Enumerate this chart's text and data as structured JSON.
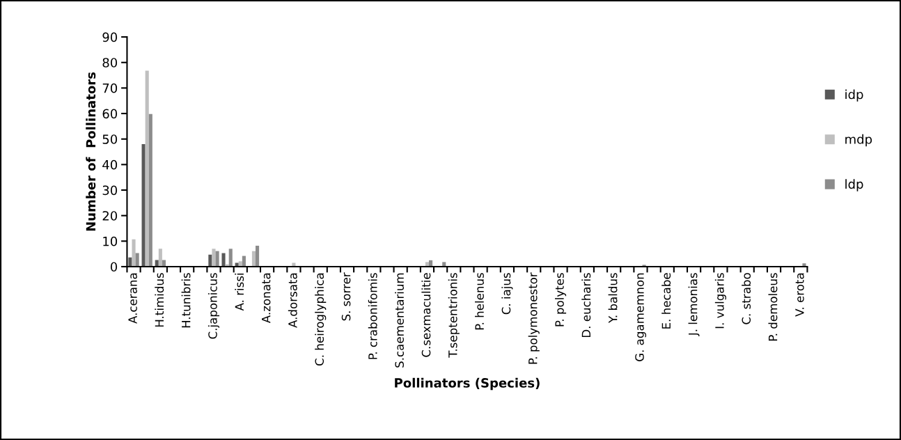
{
  "chart_data": {
    "type": "bar",
    "xlabel": "Pollinators (Species)",
    "ylabel": "Number of  Pollinators",
    "categories": [
      "A.cerana",
      null,
      "H.timidus",
      null,
      "H.tunibris",
      null,
      "C.japonicus",
      null,
      "A. rissi",
      null,
      "A.zonata",
      null,
      "A.dorsata",
      null,
      "C. heiroglyphica",
      null,
      "S. sorrer",
      null,
      "P. crabonifomis",
      null,
      "S.caementarium",
      null,
      "C.sexmaculitie",
      null,
      "T.septentrionis",
      null,
      "P. helenus",
      null,
      "C. iajus",
      null,
      "P. polymonestor",
      null,
      "P. polytes",
      null,
      "D. eucharis",
      null,
      "Y. baldus",
      null,
      "G. agamemnon",
      null,
      "E. hecabe",
      null,
      "J. lemonias",
      null,
      "I. vulgaris",
      null,
      "C. strabo",
      null,
      "P. demoleus",
      null,
      "V. erota"
    ],
    "series": [
      {
        "name": "idp",
        "color": "#595959",
        "values": [
          3.6,
          48,
          2.6,
          0,
          0,
          0,
          4.7,
          5.3,
          1.5,
          0,
          0,
          0,
          0,
          0,
          0,
          0,
          0,
          0,
          0,
          0,
          0,
          0,
          0,
          0,
          0,
          0,
          0,
          0,
          0,
          0,
          0,
          0,
          0,
          0,
          0,
          0,
          0,
          0,
          0,
          0,
          0,
          0,
          0,
          0,
          0,
          0,
          0,
          0,
          0,
          0,
          0
        ]
      },
      {
        "name": "mdp",
        "color": "#bfbfbf",
        "values": [
          10.7,
          76.8,
          7,
          0,
          0,
          0,
          7,
          0.9,
          2.1,
          6.1,
          0,
          0,
          1.5,
          0,
          0,
          0,
          0,
          0,
          0,
          0,
          0,
          0,
          1.8,
          0,
          0,
          0,
          0,
          0,
          0,
          0,
          0,
          0,
          0,
          0,
          0,
          0,
          0,
          0,
          0,
          0,
          0,
          0,
          0,
          0,
          0,
          0,
          0,
          0,
          0,
          0,
          0
        ]
      },
      {
        "name": "ldp",
        "color": "#8c8c8c",
        "values": [
          5.3,
          59.8,
          2.6,
          0,
          0,
          0,
          6.1,
          7,
          4.2,
          8.2,
          0,
          0,
          0,
          0,
          0,
          0,
          0,
          0,
          0,
          0,
          0,
          0,
          2.5,
          1.8,
          0,
          0,
          0,
          0,
          0,
          0,
          0,
          0,
          0,
          0,
          0,
          0,
          0,
          0,
          0.7,
          0,
          0,
          0,
          0,
          0,
          0,
          0,
          0,
          0,
          0,
          0,
          1.3
        ]
      }
    ],
    "ylim": [
      0,
      90
    ],
    "yticks": [
      0,
      10,
      20,
      30,
      40,
      50,
      60,
      70,
      80,
      90
    ],
    "grid": false,
    "legend": "right"
  }
}
